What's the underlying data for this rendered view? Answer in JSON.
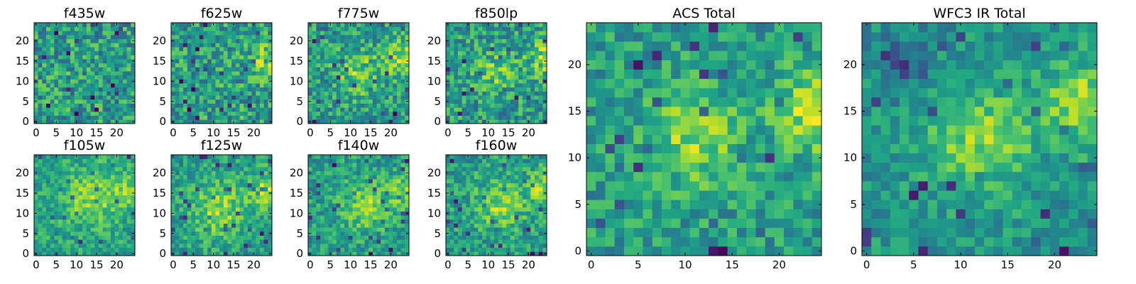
{
  "chart_data": [
    {
      "type": "heatmap",
      "title": "f435w",
      "grid_size": 25,
      "xticks": [
        0,
        5,
        10,
        15,
        20
      ],
      "yticks": [
        0,
        5,
        10,
        15,
        20
      ],
      "seed": 11,
      "level": 0.55,
      "spread": 0.25,
      "blobs": []
    },
    {
      "type": "heatmap",
      "title": "f625w",
      "grid_size": 25,
      "xticks": [
        0,
        5,
        10,
        15,
        20
      ],
      "yticks": [
        0,
        5,
        10,
        15,
        20
      ],
      "seed": 23,
      "level": 0.56,
      "spread": 0.24,
      "blobs": [
        {
          "cx": 23,
          "cy": 15,
          "r": 3,
          "amp": 0.25
        }
      ]
    },
    {
      "type": "heatmap",
      "title": "f775w",
      "grid_size": 25,
      "xticks": [
        0,
        5,
        10,
        15,
        20
      ],
      "yticks": [
        0,
        5,
        10,
        15,
        20
      ],
      "seed": 37,
      "level": 0.55,
      "spread": 0.22,
      "blobs": [
        {
          "cx": 12,
          "cy": 12,
          "r": 4,
          "amp": 0.22
        },
        {
          "cx": 23,
          "cy": 16,
          "r": 3,
          "amp": 0.3
        }
      ]
    },
    {
      "type": "heatmap",
      "title": "f850lp",
      "grid_size": 25,
      "xticks": [
        0,
        5,
        10,
        15,
        20
      ],
      "yticks": [
        0,
        5,
        10,
        15,
        20
      ],
      "seed": 41,
      "level": 0.55,
      "spread": 0.23,
      "blobs": [
        {
          "cx": 12,
          "cy": 12,
          "r": 3.5,
          "amp": 0.2
        },
        {
          "cx": 24,
          "cy": 16,
          "r": 3,
          "amp": 0.28
        }
      ]
    },
    {
      "type": "heatmap",
      "title": "f105w",
      "grid_size": 25,
      "xticks": [
        0,
        5,
        10,
        15,
        20
      ],
      "yticks": [
        0,
        5,
        10,
        15,
        20
      ],
      "seed": 53,
      "level": 0.58,
      "spread": 0.16,
      "blobs": [
        {
          "cx": 14,
          "cy": 14,
          "r": 5,
          "amp": 0.25
        },
        {
          "cx": 23,
          "cy": 16,
          "r": 3,
          "amp": 0.2
        }
      ]
    },
    {
      "type": "heatmap",
      "title": "f125w",
      "grid_size": 25,
      "xticks": [
        0,
        5,
        10,
        15,
        20
      ],
      "yticks": [
        0,
        5,
        10,
        15,
        20
      ],
      "seed": 67,
      "level": 0.55,
      "spread": 0.17,
      "blobs": [
        {
          "cx": 11,
          "cy": 11,
          "r": 5,
          "amp": 0.28
        },
        {
          "cx": 24,
          "cy": 16,
          "r": 3.5,
          "amp": 0.3
        }
      ]
    },
    {
      "type": "heatmap",
      "title": "f140w",
      "grid_size": 25,
      "xticks": [
        0,
        5,
        10,
        15,
        20
      ],
      "yticks": [
        0,
        5,
        10,
        15,
        20
      ],
      "seed": 71,
      "level": 0.55,
      "spread": 0.18,
      "blobs": [
        {
          "cx": 14,
          "cy": 12,
          "r": 4.5,
          "amp": 0.25
        },
        {
          "cx": 24,
          "cy": 16,
          "r": 3,
          "amp": 0.25
        }
      ]
    },
    {
      "type": "heatmap",
      "title": "f160w",
      "grid_size": 25,
      "xticks": [
        0,
        5,
        10,
        15,
        20
      ],
      "yticks": [
        0,
        5,
        10,
        15,
        20
      ],
      "seed": 83,
      "level": 0.55,
      "spread": 0.19,
      "blobs": [
        {
          "cx": 13,
          "cy": 12,
          "r": 4.5,
          "amp": 0.25
        },
        {
          "cx": 24,
          "cy": 16,
          "r": 3,
          "amp": 0.3
        }
      ]
    },
    {
      "type": "heatmap",
      "title": "ACS Total",
      "grid_size": 25,
      "xticks": [
        0,
        5,
        10,
        15,
        20
      ],
      "yticks": [
        0,
        5,
        10,
        15,
        20
      ],
      "seed": 97,
      "level": 0.55,
      "spread": 0.18,
      "blobs": [
        {
          "cx": 11,
          "cy": 12,
          "r": 3.5,
          "amp": 0.28
        },
        {
          "cx": 24,
          "cy": 15,
          "r": 3,
          "amp": 0.35
        }
      ]
    },
    {
      "type": "heatmap",
      "title": "WFC3 IR Total",
      "grid_size": 25,
      "xticks": [
        0,
        5,
        10,
        15,
        20
      ],
      "yticks": [
        0,
        5,
        10,
        15,
        20
      ],
      "seed": 101,
      "level": 0.52,
      "spread": 0.15,
      "blobs": [
        {
          "cx": 12,
          "cy": 12,
          "r": 4,
          "amp": 0.3
        },
        {
          "cx": 23,
          "cy": 16,
          "r": 3,
          "amp": 0.35
        },
        {
          "cx": 4,
          "cy": 20,
          "r": 2,
          "amp": -0.25
        }
      ]
    }
  ]
}
